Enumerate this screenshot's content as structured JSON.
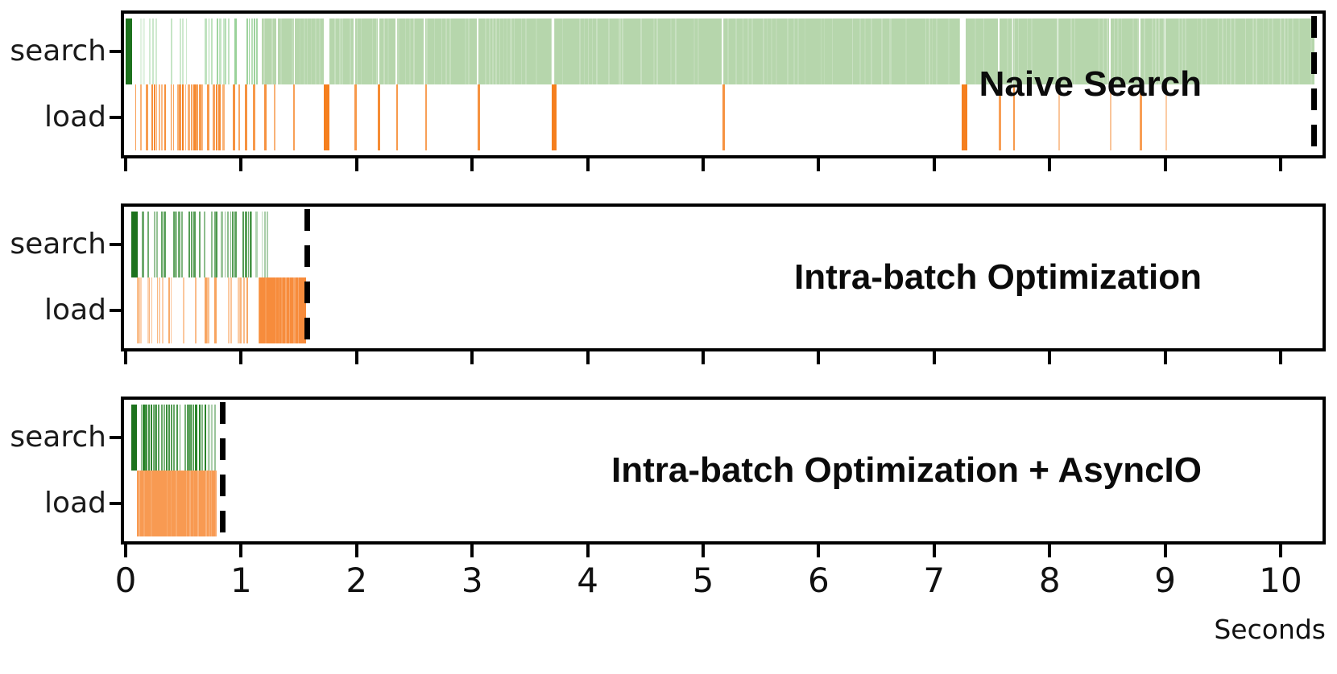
{
  "figure": {
    "background": "#ffffff"
  },
  "chart_data": {
    "type": "event-timeline",
    "xlabel": "Seconds",
    "xlim": [
      0,
      10.38
    ],
    "x_ticks": [
      0,
      1,
      2,
      3,
      4,
      5,
      6,
      7,
      8,
      9,
      10
    ],
    "row_labels": [
      "search",
      "load"
    ],
    "colors": {
      "search_solid": "#1d721d",
      "search_stripe": "#1e7d1e",
      "search_light_fill": "#b6d6ac",
      "load": "#f57f1e",
      "marker": "#000000",
      "spine": "#000000"
    },
    "panels": [
      {
        "title": "Naive Search",
        "marker_time": 10.29,
        "rows": {
          "search": [
            {
              "type": "solid",
              "t0": 0.0,
              "t1": 0.055,
              "color": "#1d721d"
            },
            {
              "type": "stripes",
              "t0": 0.1,
              "t1": 0.5,
              "color": "#2ca02c",
              "d0": 0.1,
              "d1": 0.28,
              "a0": 0.16,
              "a1": 0.3
            },
            {
              "type": "stripes",
              "t0": 0.5,
              "t1": 0.84,
              "color": "#2ca02c",
              "d0": 0.32,
              "d1": 0.6,
              "a0": 0.28,
              "a1": 0.4
            },
            {
              "type": "stripes",
              "t0": 0.84,
              "t1": 1.18,
              "color": "#2ca02c",
              "d0": 0.65,
              "d1": 0.95,
              "a0": 0.35,
              "a1": 0.46
            },
            {
              "type": "solid",
              "t0": 1.18,
              "t1": 10.29,
              "color": "#b6d6ac",
              "texture": true
            },
            {
              "type": "gaps",
              "color": "#ffffff",
              "items": [
                [
                  1.31,
                  0.012
                ],
                [
                  1.46,
                  0.012
                ],
                [
                  1.74,
                  0.055
                ],
                [
                  1.98,
                  0.014
                ],
                [
                  2.19,
                  0.016
                ],
                [
                  2.34,
                  0.014
                ],
                [
                  2.59,
                  0.014
                ],
                [
                  3.05,
                  0.016
                ],
                [
                  3.7,
                  0.022
                ],
                [
                  5.17,
                  0.016
                ],
                [
                  7.25,
                  0.05
                ],
                [
                  7.56,
                  0.012
                ],
                [
                  7.68,
                  0.012
                ],
                [
                  8.07,
                  0.01
                ],
                [
                  8.52,
                  0.01
                ],
                [
                  8.78,
                  0.014
                ],
                [
                  9.0,
                  0.01
                ]
              ]
            }
          ],
          "load": [
            {
              "type": "stripes",
              "t0": 0.08,
              "t1": 0.64,
              "color": "#f57f1e",
              "d0": 0.88,
              "d1": 0.88,
              "a0": 0.82,
              "a1": 0.82
            },
            {
              "type": "stripes",
              "t0": 0.655,
              "t1": 0.9,
              "color": "#f57f1e",
              "d0": 0.55,
              "d1": 0.45,
              "a0": 0.78,
              "a1": 0.7
            },
            {
              "type": "spikes",
              "color": "#f57f1e",
              "items": [
                [
                  0.94,
                  0.02,
                  0.85
                ],
                [
                  0.98,
                  0.014,
                  0.7
                ],
                [
                  1.04,
                  0.02,
                  0.85
                ],
                [
                  1.11,
                  0.02,
                  0.8
                ],
                [
                  1.21,
                  0.02,
                  0.85
                ],
                [
                  1.29,
                  0.014,
                  0.6
                ],
                [
                  1.46,
                  0.014,
                  0.75
                ],
                [
                  1.74,
                  0.05,
                  1.0
                ],
                [
                  1.99,
                  0.018,
                  0.8
                ],
                [
                  2.19,
                  0.022,
                  0.9
                ],
                [
                  2.35,
                  0.018,
                  0.8
                ],
                [
                  2.6,
                  0.018,
                  0.75
                ],
                [
                  3.06,
                  0.022,
                  0.85
                ],
                [
                  3.71,
                  0.04,
                  1.0
                ],
                [
                  5.18,
                  0.02,
                  0.85
                ],
                [
                  7.26,
                  0.05,
                  1.0
                ],
                [
                  7.57,
                  0.018,
                  0.75
                ],
                [
                  7.69,
                  0.018,
                  0.8
                ],
                [
                  8.08,
                  0.012,
                  0.45
                ],
                [
                  8.53,
                  0.012,
                  0.45
                ],
                [
                  8.79,
                  0.018,
                  0.75
                ],
                [
                  9.01,
                  0.012,
                  0.4
                ]
              ]
            }
          ]
        }
      },
      {
        "title": "Intra-batch Optimization",
        "marker_time": 1.57,
        "rows": {
          "search": [
            {
              "type": "solid",
              "t0": 0.05,
              "t1": 0.105,
              "color": "#1d721d"
            },
            {
              "type": "stripes",
              "t0": 0.14,
              "t1": 1.08,
              "color": "#1e7d1e",
              "d0": 0.6,
              "d1": 0.62,
              "a0": 0.55,
              "a1": 0.7
            },
            {
              "type": "stripes",
              "t0": 1.08,
              "t1": 1.44,
              "color": "#1e7d1e",
              "d0": 0.55,
              "d1": 0.05,
              "a0": 0.45,
              "a1": 0.1
            }
          ],
          "load": [
            {
              "type": "stripes",
              "t0": 0.1,
              "t1": 1.16,
              "color": "#f57f1e",
              "d0": 0.5,
              "d1": 0.55,
              "a0": 0.5,
              "a1": 0.62
            },
            {
              "type": "solid",
              "t0": 1.16,
              "t1": 1.565,
              "color": "#f78c3c",
              "texture": true
            }
          ]
        }
      },
      {
        "title": "Intra-batch Optimization + AsyncIO",
        "marker_time": 0.84,
        "rows": {
          "search": [
            {
              "type": "solid",
              "t0": 0.05,
              "t1": 0.095,
              "color": "#1d721d"
            },
            {
              "type": "stripes",
              "t0": 0.13,
              "t1": 0.71,
              "color": "#1e7d1e",
              "d0": 0.93,
              "d1": 0.93,
              "a0": 0.82,
              "a1": 0.85
            },
            {
              "type": "stripes",
              "t0": 0.71,
              "t1": 0.785,
              "color": "#1e7d1e",
              "d0": 0.9,
              "d1": 0.85,
              "a0": 0.55,
              "a1": 0.45
            }
          ],
          "load": [
            {
              "type": "solid",
              "t0": 0.1,
              "t1": 0.79,
              "color": "#f89a52",
              "texture": true
            }
          ]
        }
      }
    ]
  }
}
